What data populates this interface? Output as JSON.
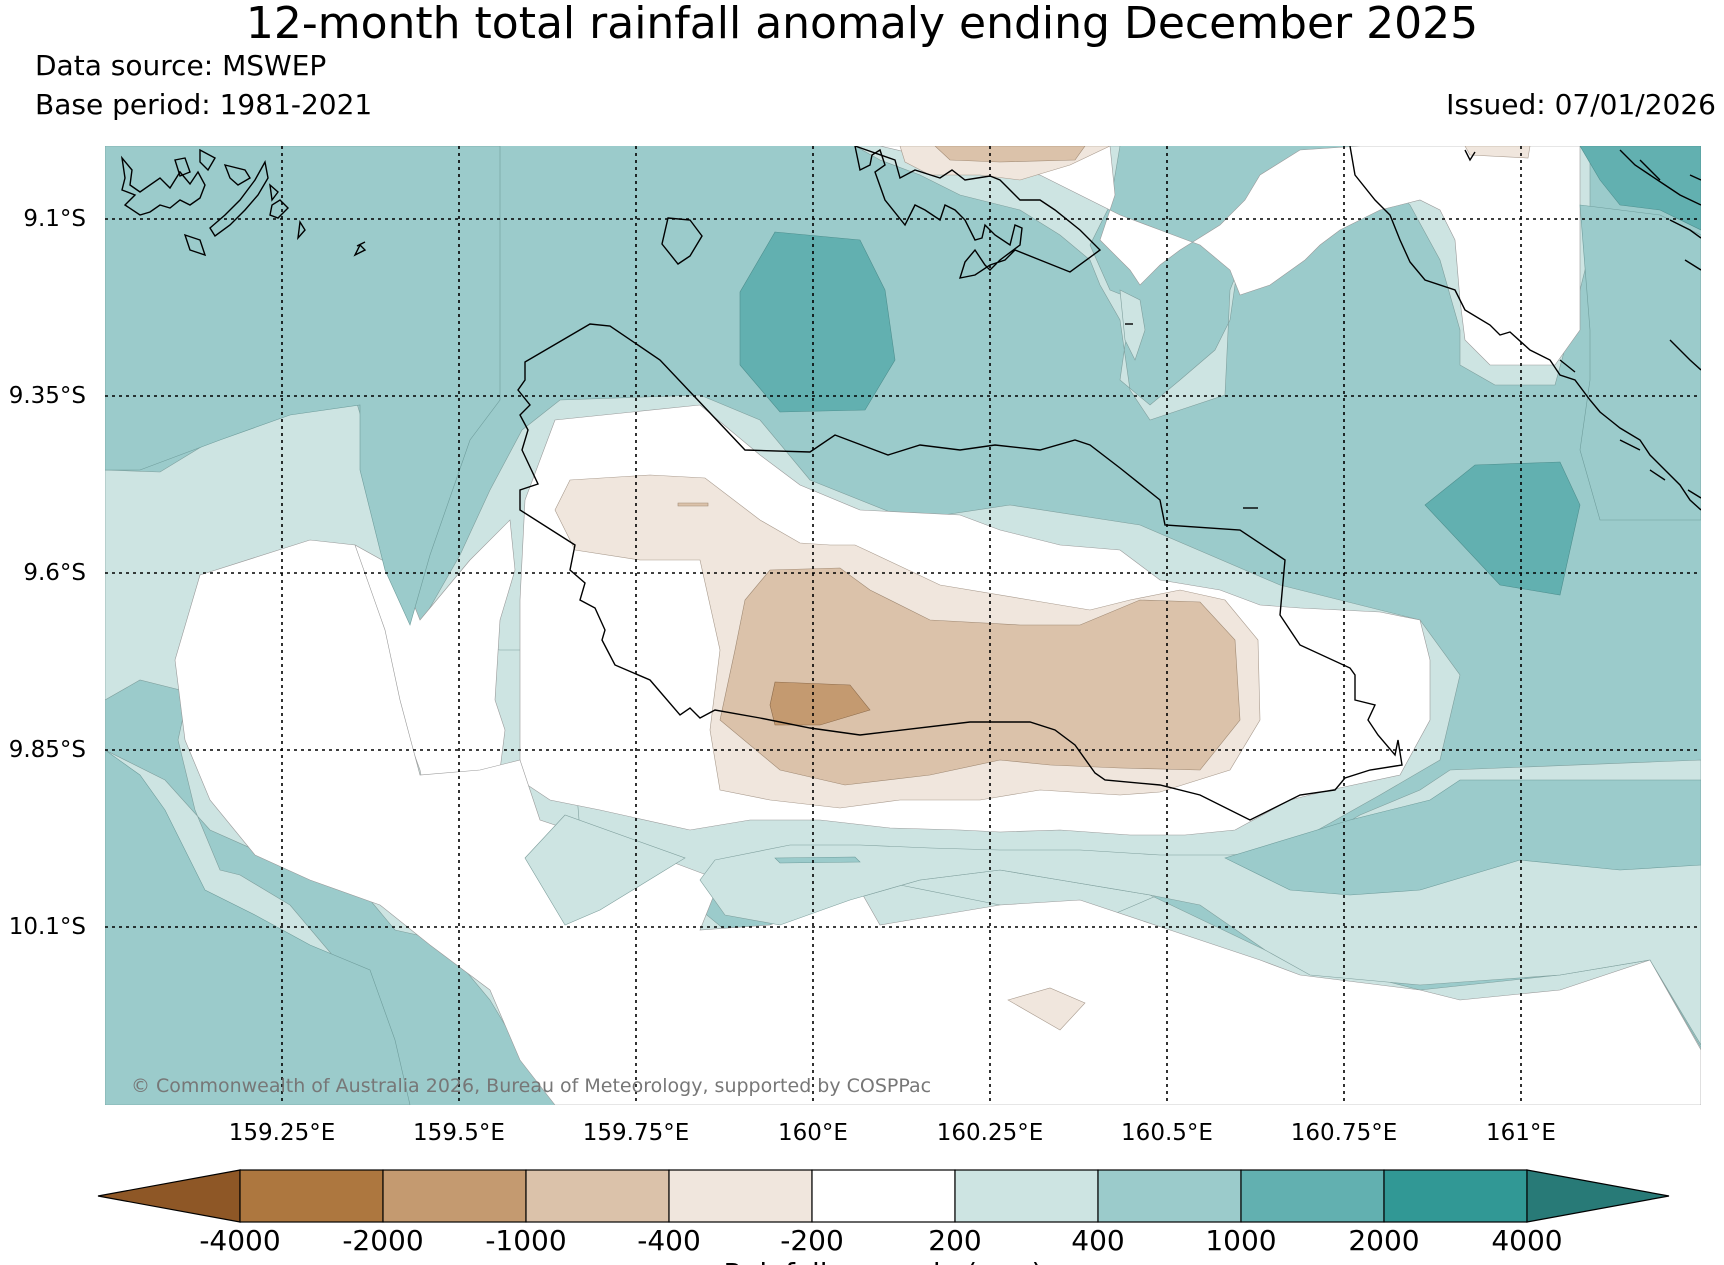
{
  "title": "12-month total rainfall anomaly ending December 2025",
  "data_source": "Data source: MSWEP",
  "base_period": "Base period: 1981-2021",
  "issued": "Issued: 07/01/2026",
  "copyright": "© Commonwealth of Australia 2026, Bureau of Meteorology, supported by COSPPac",
  "map": {
    "lat_labels": [
      "9.1°S",
      "9.35°S",
      "9.6°S",
      "9.85°S",
      "10.1°S"
    ],
    "lon_labels": [
      "159.25°E",
      "159.5°E",
      "159.75°E",
      "160°E",
      "160.25°E",
      "160.5°E",
      "160.75°E",
      "161°E"
    ]
  },
  "colorbar": {
    "title": "Rainfall anomaly (mm)",
    "tick_labels": [
      "-4000",
      "-2000",
      "-1000",
      "-400",
      "-200",
      "200",
      "400",
      "1000",
      "2000",
      "4000"
    ],
    "colors": [
      "#8e5726",
      "#ad773f",
      "#c49a70",
      "#dbc2aa",
      "#f0e6dd",
      "#ffffff",
      "#cde4e2",
      "#9bcbcb",
      "#62b0b0",
      "#319895",
      "#287a77"
    ]
  }
}
